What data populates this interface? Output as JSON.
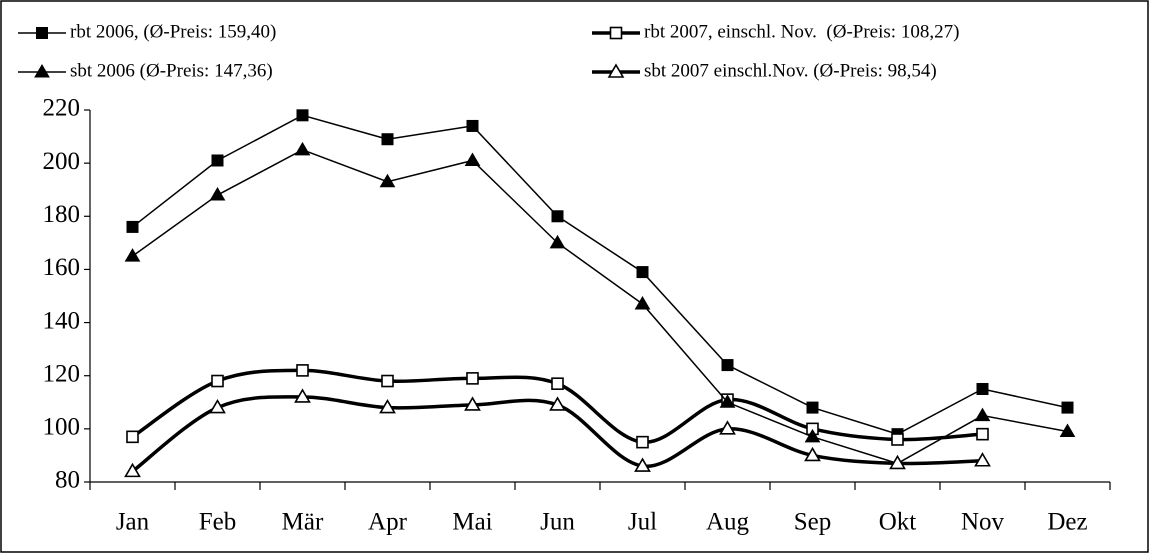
{
  "chart_data": {
    "type": "line",
    "categories": [
      "Jan",
      "Feb",
      "Mär",
      "Apr",
      "Mai",
      "Jun",
      "Jul",
      "Aug",
      "Sep",
      "Okt",
      "Nov",
      "Dez"
    ],
    "series": [
      {
        "name": "rbt 2006, (Ø-Preis: 159,40)",
        "color": "#000000",
        "marker": "square-filled",
        "line_width": 1.5,
        "smooth": false,
        "values": [
          176,
          201,
          218,
          209,
          214,
          180,
          159,
          124,
          108,
          98,
          115,
          108
        ]
      },
      {
        "name": "rbt 2007, einschl. Nov.  (Ø-Preis: 108,27)",
        "color": "#000000",
        "marker": "square-open",
        "line_width": 3.5,
        "smooth": true,
        "values": [
          97,
          118,
          122,
          118,
          119,
          117,
          95,
          111,
          100,
          96,
          98,
          null
        ]
      },
      {
        "name": "sbt 2006 (Ø-Preis: 147,36)",
        "color": "#000000",
        "marker": "triangle-filled",
        "line_width": 1.5,
        "smooth": false,
        "values": [
          165,
          188,
          205,
          193,
          201,
          170,
          147,
          110,
          97,
          87,
          105,
          99
        ]
      },
      {
        "name": "sbt 2007 einschl.Nov. (Ø-Preis: 98,54)",
        "color": "#000000",
        "marker": "triangle-open",
        "line_width": 3.5,
        "smooth": true,
        "values": [
          84,
          108,
          112,
          108,
          109,
          109,
          86,
          100,
          90,
          87,
          88,
          null
        ]
      }
    ],
    "ylim": [
      80,
      220
    ],
    "yticks": [
      80,
      100,
      120,
      140,
      160,
      180,
      200,
      220
    ],
    "grid": false
  }
}
